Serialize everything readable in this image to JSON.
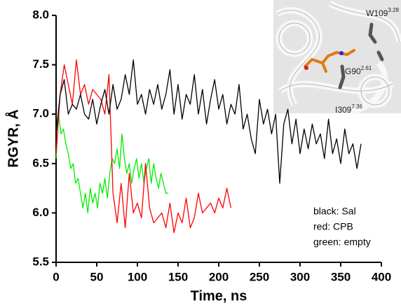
{
  "chart_data": {
    "type": "line",
    "x_label": "Time, ns",
    "y_label": "RGYR, Å",
    "xlim": [
      0,
      400
    ],
    "xticks": [
      0,
      50,
      100,
      150,
      200,
      250,
      300,
      350,
      400
    ],
    "ylim": [
      5.5,
      8.0
    ],
    "yticks": [
      5.5,
      {
        "value": 6,
        "label": "6.0"
      },
      6.5,
      {
        "value": 7,
        "label": "7.0"
      },
      7.5,
      {
        "value": 8,
        "label": "8.0"
      }
    ],
    "series": [
      {
        "name": "black: Sal",
        "color": "#000000",
        "x": [
          0,
          5,
          10,
          15,
          20,
          25,
          30,
          35,
          40,
          45,
          50,
          55,
          60,
          65,
          70,
          75,
          80,
          85,
          90,
          95,
          100,
          105,
          110,
          115,
          120,
          125,
          130,
          135,
          140,
          145,
          150,
          155,
          160,
          165,
          170,
          175,
          180,
          185,
          190,
          195,
          200,
          205,
          210,
          215,
          220,
          225,
          230,
          235,
          240,
          245,
          250,
          255,
          260,
          265,
          270,
          275,
          280,
          285,
          290,
          295,
          300,
          305,
          310,
          315,
          320,
          325,
          330,
          335,
          340,
          345,
          350,
          355,
          360,
          365,
          370,
          375
        ],
        "values": [
          6.8,
          7.2,
          7.35,
          7.0,
          7.1,
          7.05,
          7.2,
          7.0,
          6.95,
          7.15,
          6.9,
          7.1,
          7.25,
          7.0,
          7.3,
          7.05,
          7.15,
          7.4,
          7.2,
          7.55,
          7.1,
          7.2,
          7.0,
          7.25,
          7.1,
          7.3,
          7.05,
          7.2,
          7.45,
          7.0,
          7.3,
          6.95,
          7.2,
          7.1,
          7.4,
          7.0,
          7.25,
          6.9,
          7.15,
          7.35,
          7.05,
          7.2,
          6.9,
          7.1,
          7.0,
          7.3,
          6.85,
          7.0,
          6.75,
          6.6,
          7.15,
          6.9,
          7.05,
          6.8,
          7.0,
          6.3,
          6.9,
          7.05,
          6.7,
          6.95,
          6.6,
          6.85,
          6.65,
          6.9,
          6.7,
          6.8,
          6.55,
          6.95,
          6.6,
          6.75,
          6.5,
          6.85,
          6.6,
          6.7,
          6.45,
          6.7
        ]
      },
      {
        "name": "red: CPB",
        "color": "#ff0000",
        "x": [
          0,
          5,
          10,
          15,
          20,
          25,
          30,
          35,
          40,
          45,
          50,
          55,
          60,
          65,
          70,
          75,
          80,
          85,
          90,
          95,
          100,
          105,
          110,
          115,
          120,
          125,
          130,
          135,
          140,
          145,
          150,
          155,
          160,
          165,
          170,
          175,
          180,
          185,
          190,
          195,
          200,
          205,
          210,
          215
        ],
        "values": [
          6.6,
          7.2,
          7.5,
          7.3,
          7.1,
          7.55,
          7.2,
          7.3,
          7.1,
          7.25,
          7.2,
          7.15,
          7.0,
          7.4,
          6.2,
          5.9,
          6.3,
          5.85,
          6.4,
          6.0,
          6.1,
          5.95,
          6.5,
          6.05,
          5.9,
          5.95,
          6.0,
          5.85,
          6.1,
          5.8,
          6.0,
          5.9,
          6.15,
          5.85,
          5.95,
          6.2,
          6.0,
          6.05,
          6.1,
          6.0,
          6.15,
          6.05,
          6.25,
          6.05
        ]
      },
      {
        "name": "green: empty",
        "color": "#00ee00",
        "x": [
          0,
          3,
          6,
          9,
          12,
          15,
          18,
          21,
          24,
          27,
          30,
          33,
          36,
          39,
          42,
          45,
          48,
          51,
          54,
          57,
          60,
          63,
          66,
          69,
          72,
          75,
          78,
          81,
          84,
          87,
          90,
          93,
          96,
          99,
          102,
          105,
          108,
          111,
          114,
          117,
          120,
          123,
          126,
          129,
          132,
          135,
          138
        ],
        "values": [
          6.55,
          7.0,
          6.8,
          6.85,
          6.7,
          6.6,
          6.45,
          6.5,
          6.3,
          6.35,
          6.2,
          6.05,
          6.2,
          6.0,
          6.25,
          6.1,
          6.2,
          6.05,
          6.3,
          6.2,
          6.35,
          6.15,
          6.4,
          6.55,
          6.5,
          6.65,
          6.45,
          6.8,
          6.55,
          6.4,
          6.5,
          6.3,
          6.45,
          6.55,
          6.35,
          6.5,
          6.3,
          6.45,
          6.55,
          6.3,
          6.5,
          6.35,
          6.25,
          6.4,
          6.3,
          6.2,
          6.2
        ]
      }
    ],
    "annotations": [
      {
        "text": "W109",
        "sup": "3.28"
      },
      {
        "text": "G90",
        "sup": "2.61"
      },
      {
        "text": "I309",
        "sup": "7.36"
      }
    ]
  }
}
